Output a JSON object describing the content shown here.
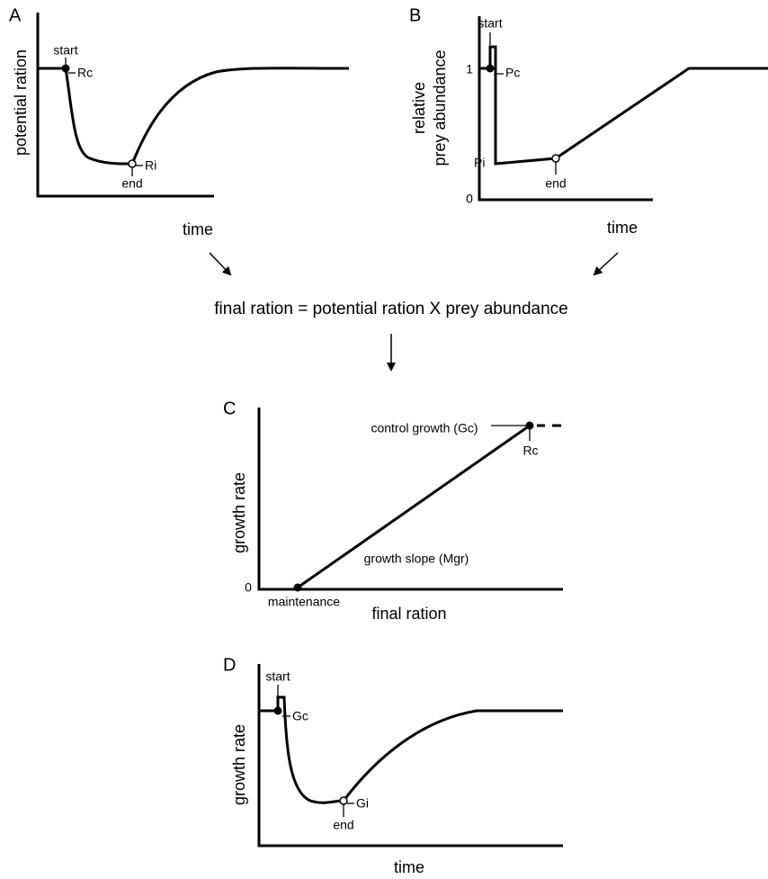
{
  "panels": [
    {
      "label": "A",
      "y_label": "potential ration",
      "x_label": "time",
      "start": "start",
      "control": "Rc",
      "reduced": "Ri",
      "end": "end"
    },
    {
      "label": "B",
      "y_label": [
        "relative",
        "prey abundance"
      ],
      "x_label": "time",
      "ticks": [
        "1",
        "0"
      ],
      "start": "start",
      "control": "Pc",
      "reduced": "Pi",
      "end": "end"
    },
    {
      "label": "C",
      "y_label": "growth rate",
      "x_label": "final ration",
      "tick": "0",
      "control": "control growth (Gc)",
      "ration": "Rc",
      "slope": "growth slope (Mgr)",
      "maintenance": "maintenance"
    },
    {
      "label": "D",
      "y_label": "growth rate",
      "x_label": "time",
      "start": "start",
      "control": "Gc",
      "reduced": "Gi",
      "end": "end"
    }
  ],
  "equation": "final ration = potential ration X prey abundance"
}
